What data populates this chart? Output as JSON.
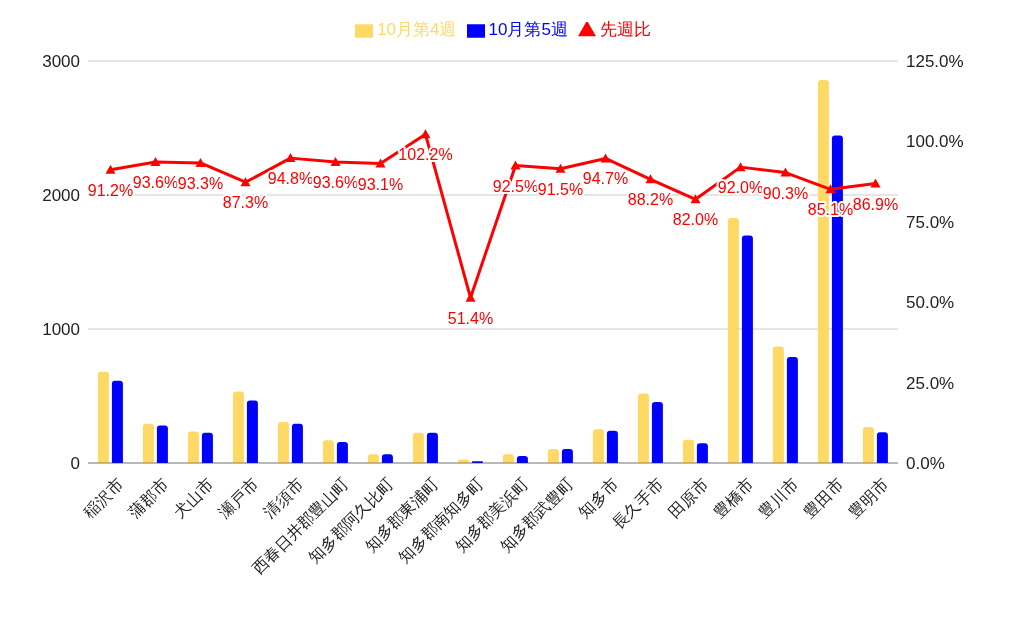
{
  "chart_data": {
    "type": "bar",
    "categories": [
      "稲沢市",
      "蒲郡市",
      "犬山市",
      "瀬戸市",
      "清須市",
      "西春日井郡豊山町",
      "知多郡阿久比町",
      "知多郡東浦町",
      "知多郡南知多町",
      "知多郡美浜町",
      "知多郡武豊町",
      "知多市",
      "長久手市",
      "田原市",
      "豊橋市",
      "豊川市",
      "豊田市",
      "豊明市"
    ],
    "series": [
      {
        "name": "10月第4週",
        "color": "#ffd966",
        "values": [
          681,
          293,
          236,
          534,
          306,
          170,
          65,
          225,
          26,
          65,
          105,
          251,
          518,
          173,
          1828,
          869,
          2859,
          269
        ]
      },
      {
        "name": "10月第5週",
        "color": "#0000ff",
        "values": [
          613,
          280,
          225,
          466,
          293,
          157,
          65,
          225,
          13,
          52,
          105,
          241,
          455,
          147,
          1697,
          791,
          2444,
          230
        ]
      },
      {
        "name": "先週比",
        "type": "line",
        "axis": "y2",
        "color": "#ff0000",
        "marker": "triangle",
        "values": [
          91.2,
          93.6,
          93.3,
          87.3,
          94.8,
          93.6,
          93.1,
          102.2,
          51.4,
          92.5,
          91.5,
          94.7,
          88.2,
          82.0,
          92.0,
          90.3,
          85.1,
          86.9
        ],
        "value_labels": [
          "91.2%",
          "93.6%",
          "93.3%",
          "87.3%",
          "94.8%",
          "93.6%",
          "93.1%",
          "102.2%",
          "51.4%",
          "92.5%",
          "91.5%",
          "94.7%",
          "88.2%",
          "82.0%",
          "92.0%",
          "90.3%",
          "85.1%",
          "86.9%"
        ]
      }
    ],
    "ylim": [
      0,
      3000
    ],
    "yticks": [
      0,
      1000,
      2000,
      3000
    ],
    "y2lim": [
      0,
      125
    ],
    "y2ticks": [
      {
        "value": 0,
        "label": "0.0%"
      },
      {
        "value": 25,
        "label": "25.0%"
      },
      {
        "value": 50,
        "label": "50.0%"
      },
      {
        "value": 75,
        "label": "75.0%"
      },
      {
        "value": 100,
        "label": "100.0%"
      },
      {
        "value": 125,
        "label": "125.0%"
      }
    ],
    "grid": "y",
    "legend": "top"
  }
}
